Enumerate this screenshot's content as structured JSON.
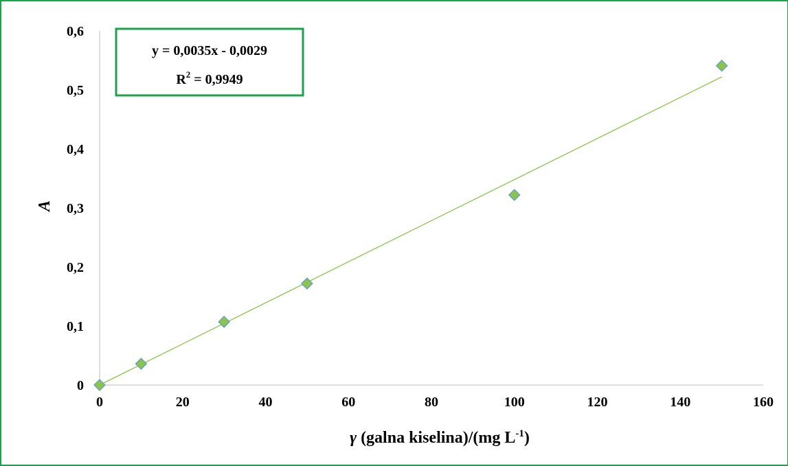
{
  "chart_data": {
    "type": "scatter",
    "x": [
      0,
      10,
      30,
      50,
      100,
      150
    ],
    "y": [
      0.0,
      0.036,
      0.107,
      0.172,
      0.322,
      0.541
    ],
    "xlim": [
      0,
      160
    ],
    "ylim": [
      0,
      0.6
    ],
    "xticks": [
      0,
      20,
      40,
      60,
      80,
      100,
      120,
      140,
      160
    ],
    "xtick_labels": [
      "0",
      "20",
      "40",
      "60",
      "80",
      "100",
      "120",
      "140",
      "160"
    ],
    "yticks": [
      0,
      0.1,
      0.2,
      0.3,
      0.4,
      0.5,
      0.6
    ],
    "ytick_labels": [
      "0",
      "0,1",
      "0,2",
      "0,3",
      "0,4",
      "0,5",
      "0,6"
    ],
    "xlabel_symbol": "γ",
    "xlabel_text": " (galna kiselina)/(mg L",
    "xlabel_sup": "-1",
    "xlabel_close": ")",
    "ylabel": "A",
    "trendline": {
      "slope": 0.0035,
      "intercept": -0.0029,
      "x_range": [
        0,
        150
      ]
    },
    "equation": "y = 0,0035x - 0,0029",
    "r2_prefix": "R",
    "r2_sup": "2",
    "r2_value": " = 0,9949",
    "grid": false,
    "colors": {
      "marker_fill": "#8cc34a",
      "marker_stroke": "#5b9bd5",
      "trendline": "#8cc34a",
      "axis": "#bfbfbf",
      "frame": "#1aa34a",
      "box_border": "#1aa34a"
    }
  }
}
